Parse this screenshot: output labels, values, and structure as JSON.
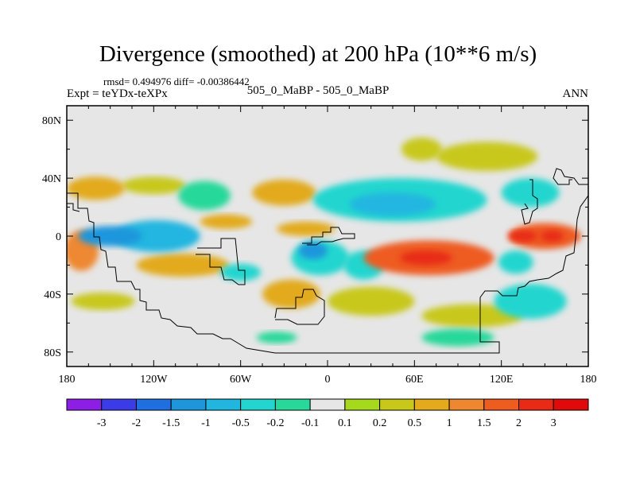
{
  "chart_data": {
    "type": "heatmap",
    "title": "Divergence (smoothed) at 200 hPa (10**6 m/s)",
    "stats_line": "rmsd= 0.494976 diff= -0.00386442",
    "expt_label": "Expt = teYDx-teXPx",
    "case_label": "505_0_MaBP - 505_0_MaBP",
    "season": "ANN",
    "xlabel": "",
    "ylabel": "",
    "xlim": [
      -180,
      180
    ],
    "ylim": [
      -90,
      90
    ],
    "x_ticks": [
      {
        "value": -180,
        "label": "180"
      },
      {
        "value": -120,
        "label": "120W"
      },
      {
        "value": -60,
        "label": "60W"
      },
      {
        "value": 0,
        "label": "0"
      },
      {
        "value": 60,
        "label": "60E"
      },
      {
        "value": 120,
        "label": "120E"
      },
      {
        "value": 180,
        "label": "180"
      }
    ],
    "y_ticks": [
      {
        "value": 80,
        "label": "80N"
      },
      {
        "value": 40,
        "label": "40N"
      },
      {
        "value": 0,
        "label": "0"
      },
      {
        "value": -40,
        "label": "40S"
      },
      {
        "value": -80,
        "label": "80S"
      }
    ],
    "colorbar": {
      "levels": [
        "-3",
        "-2",
        "-1.5",
        "-1",
        "-0.5",
        "-0.2",
        "-0.1",
        "0.1",
        "0.2",
        "0.5",
        "1",
        "1.5",
        "2",
        "3"
      ],
      "colors": [
        "#8c1ee6",
        "#3b3be8",
        "#1f6fe0",
        "#1e96dc",
        "#20b6e0",
        "#22d6cf",
        "#27d89a",
        "#e6e6e6",
        "#a6d81c",
        "#c8c81a",
        "#e2aa1c",
        "#ee8830",
        "#ee5c20",
        "#e82a16",
        "#e00a0a"
      ]
    },
    "background_color": "#e6e6e6",
    "field_features": [
      {
        "lon": -150,
        "lat": 0,
        "value": -1.5,
        "rx": 22,
        "ry": 7
      },
      {
        "lon": -118,
        "lat": 0,
        "value": -1.0,
        "rx": 30,
        "ry": 11
      },
      {
        "lon": -170,
        "lat": -10,
        "value": 1.0,
        "rx": 12,
        "ry": 14
      },
      {
        "lon": -160,
        "lat": 33,
        "value": 0.5,
        "rx": 20,
        "ry": 8
      },
      {
        "lon": -120,
        "lat": 35,
        "value": 0.2,
        "rx": 22,
        "ry": 6
      },
      {
        "lon": -85,
        "lat": 28,
        "value": -0.2,
        "rx": 18,
        "ry": 10
      },
      {
        "lon": -70,
        "lat": 10,
        "value": 0.5,
        "rx": 18,
        "ry": 5
      },
      {
        "lon": -100,
        "lat": -20,
        "value": 0.5,
        "rx": 32,
        "ry": 8
      },
      {
        "lon": -60,
        "lat": -25,
        "value": -0.5,
        "rx": 14,
        "ry": 6
      },
      {
        "lon": -155,
        "lat": -45,
        "value": 0.2,
        "rx": 22,
        "ry": 6
      },
      {
        "lon": -30,
        "lat": 30,
        "value": 0.5,
        "rx": 22,
        "ry": 9
      },
      {
        "lon": -15,
        "lat": 5,
        "value": 0.5,
        "rx": 20,
        "ry": 5
      },
      {
        "lon": -10,
        "lat": -10,
        "value": -1.5,
        "rx": 10,
        "ry": 6
      },
      {
        "lon": -5,
        "lat": -15,
        "value": -0.5,
        "rx": 20,
        "ry": 12
      },
      {
        "lon": -25,
        "lat": -40,
        "value": 0.5,
        "rx": 20,
        "ry": 10
      },
      {
        "lon": -35,
        "lat": -70,
        "value": -0.2,
        "rx": 14,
        "ry": 4
      },
      {
        "lon": 25,
        "lat": -20,
        "value": -0.5,
        "rx": 14,
        "ry": 10
      },
      {
        "lon": 50,
        "lat": 25,
        "value": -0.5,
        "rx": 60,
        "ry": 15
      },
      {
        "lon": 45,
        "lat": 22,
        "value": -1.0,
        "rx": 30,
        "ry": 8
      },
      {
        "lon": 65,
        "lat": 60,
        "value": 0.2,
        "rx": 14,
        "ry": 8
      },
      {
        "lon": 110,
        "lat": 55,
        "value": 0.2,
        "rx": 35,
        "ry": 10
      },
      {
        "lon": 70,
        "lat": -15,
        "value": 1.5,
        "rx": 45,
        "ry": 12
      },
      {
        "lon": 68,
        "lat": -15,
        "value": 2.5,
        "rx": 18,
        "ry": 5
      },
      {
        "lon": 150,
        "lat": 0,
        "value": 1.5,
        "rx": 25,
        "ry": 9
      },
      {
        "lon": 135,
        "lat": 0,
        "value": 2.5,
        "rx": 10,
        "ry": 4
      },
      {
        "lon": 155,
        "lat": 0,
        "value": 2.5,
        "rx": 8,
        "ry": 4
      },
      {
        "lon": 130,
        "lat": -18,
        "value": -0.5,
        "rx": 12,
        "ry": 8
      },
      {
        "lon": 140,
        "lat": -45,
        "value": -0.5,
        "rx": 25,
        "ry": 12
      },
      {
        "lon": 140,
        "lat": 30,
        "value": -0.5,
        "rx": 20,
        "ry": 10
      },
      {
        "lon": 100,
        "lat": -55,
        "value": 0.2,
        "rx": 35,
        "ry": 8
      },
      {
        "lon": 90,
        "lat": -70,
        "value": -0.2,
        "rx": 25,
        "ry": 6
      },
      {
        "lon": 30,
        "lat": -45,
        "value": 0.2,
        "rx": 30,
        "ry": 10
      }
    ]
  }
}
